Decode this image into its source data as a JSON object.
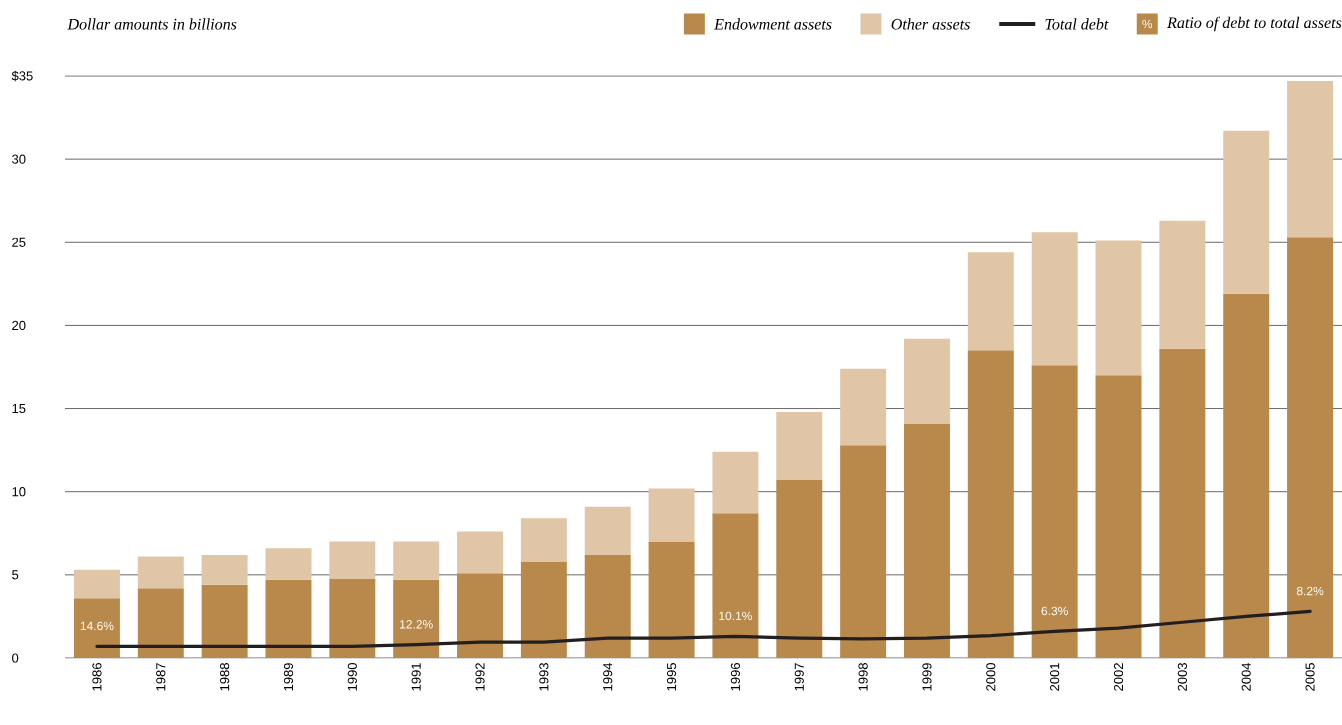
{
  "chart_data": {
    "type": "bar",
    "stacked": true,
    "ylabel": "Dollar amounts in billions",
    "categories": [
      "1986",
      "1987",
      "1988",
      "1989",
      "1990",
      "1991",
      "1992",
      "1993",
      "1994",
      "1995",
      "1996",
      "1997",
      "1998",
      "1999",
      "2000",
      "2001",
      "2002",
      "2003",
      "2004",
      "2005"
    ],
    "series": [
      {
        "name": "Endowment assets",
        "color": "#b8894b",
        "values": [
          3.6,
          4.2,
          4.4,
          4.7,
          4.75,
          4.7,
          5.1,
          5.8,
          6.2,
          7.0,
          8.7,
          10.7,
          12.8,
          14.1,
          18.5,
          17.6,
          17.0,
          18.6,
          21.9,
          25.3
        ]
      },
      {
        "name": "Other assets",
        "color": "#e0c6a6",
        "values": [
          1.7,
          1.9,
          1.8,
          1.9,
          2.25,
          2.3,
          2.5,
          2.6,
          2.9,
          3.2,
          3.7,
          4.1,
          4.6,
          5.1,
          5.9,
          8.0,
          8.1,
          7.7,
          9.8,
          9.4
        ]
      },
      {
        "name": "Total debt",
        "type": "line",
        "color": "#231f20",
        "values": [
          0.7,
          0.7,
          0.7,
          0.7,
          0.7,
          0.8,
          0.95,
          0.95,
          1.2,
          1.2,
          1.3,
          1.2,
          1.15,
          1.2,
          1.35,
          1.6,
          1.8,
          2.15,
          2.5,
          2.8
        ]
      }
    ],
    "ylim": [
      0,
      35
    ],
    "yticks": [
      0,
      5,
      10,
      15,
      20,
      25,
      30,
      {
        "value": 35,
        "label": "$35"
      }
    ],
    "grid": "y",
    "legend": "top right",
    "marker": "none",
    "annotations": [
      "%",
      "Ratio of debt to total assets",
      {
        "text": "14.6%",
        "x": "1986",
        "y": 0.7
      },
      {
        "text": "12.2%",
        "x": "1991",
        "y": 0.8
      },
      {
        "text": "10.1%",
        "x": "1996",
        "y": 1.3
      },
      {
        "text": "6.3%",
        "x": "2001",
        "y": 1.6
      },
      {
        "text": "8.2%",
        "x": "2005",
        "y": 2.8
      }
    ]
  }
}
